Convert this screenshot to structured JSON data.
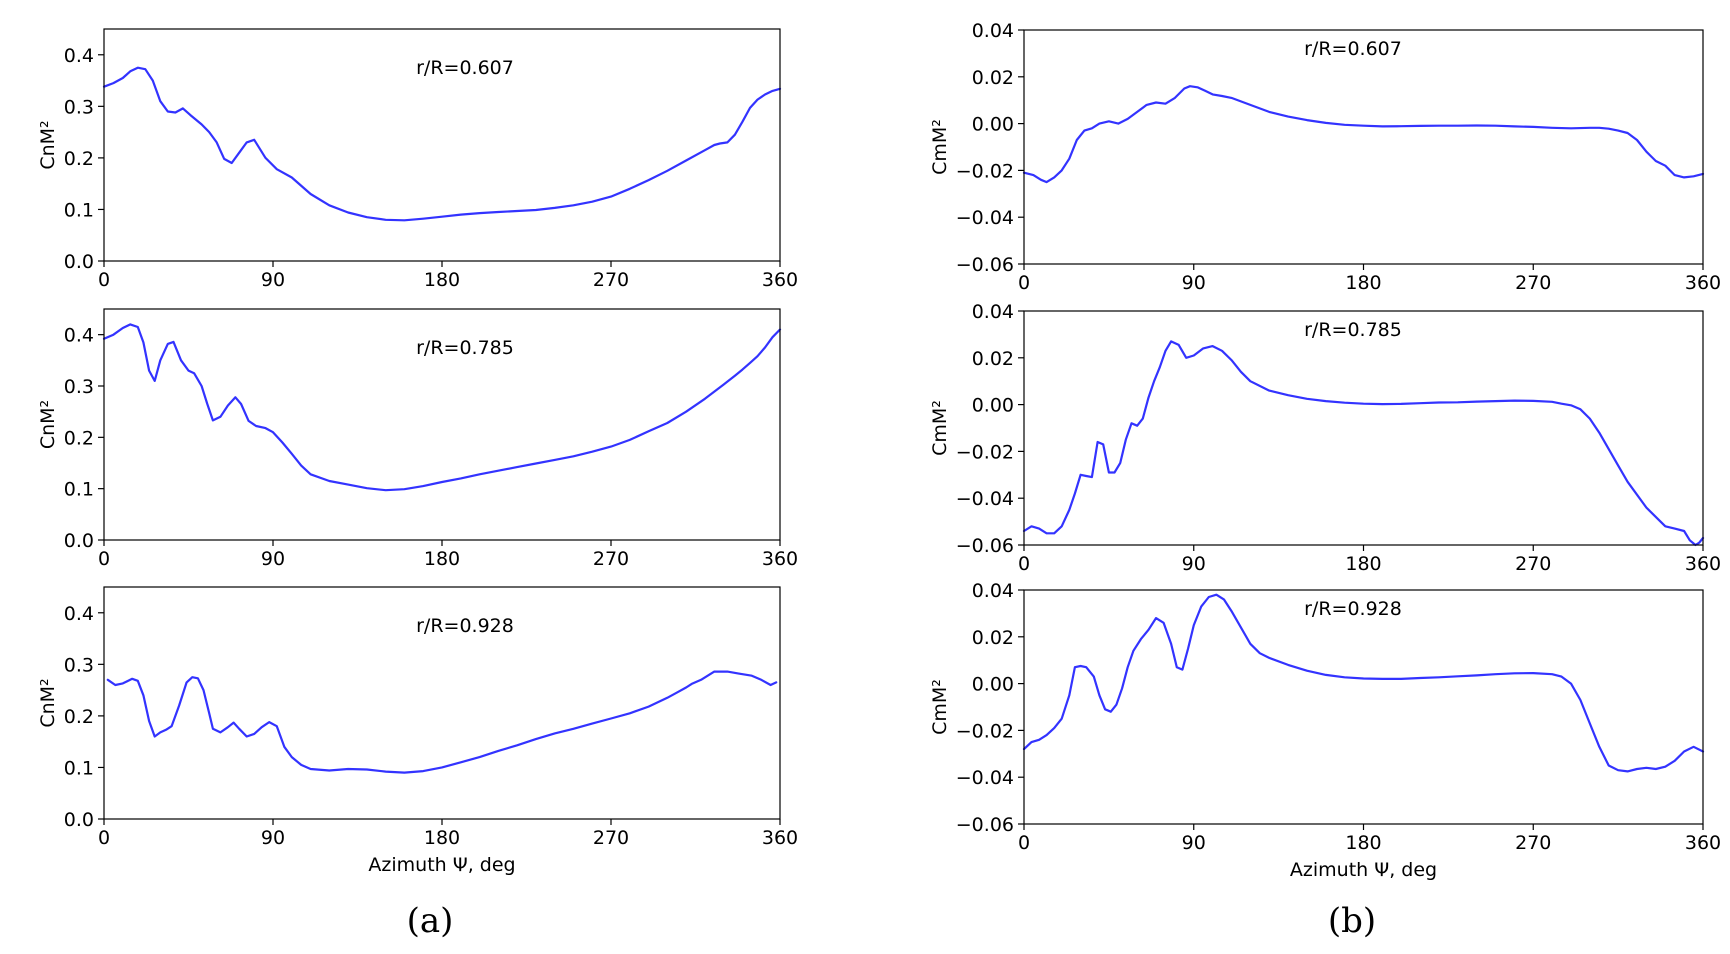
{
  "figure": {
    "sublabels": [
      "(a)",
      "(b)"
    ]
  },
  "colors": {
    "series": "#3333ff"
  },
  "chart_data": [
    {
      "type": "line",
      "column": "a",
      "row": 0,
      "annotation": "r/R=0.607",
      "ylabel": "CnM²",
      "xlabel": "",
      "xlim": [
        0,
        360
      ],
      "ylim": [
        0,
        0.45
      ],
      "xticks": [
        0,
        90,
        180,
        270,
        360
      ],
      "xtick_labels": [
        "0",
        "90",
        "180",
        "270",
        "360"
      ],
      "yticks": [
        0,
        0.1,
        0.2,
        0.3,
        0.4
      ],
      "ytick_labels": [
        "0.0",
        "0.1",
        "0.2",
        "0.3",
        "0.4"
      ],
      "series": [
        {
          "name": "CnM²",
          "x": [
            0,
            5,
            10,
            14,
            18,
            22,
            26,
            30,
            34,
            38,
            42,
            46,
            52,
            56,
            60,
            64,
            68,
            72,
            76,
            80,
            86,
            92,
            100,
            110,
            120,
            130,
            140,
            150,
            160,
            170,
            180,
            190,
            200,
            210,
            220,
            230,
            240,
            250,
            260,
            270,
            280,
            290,
            300,
            310,
            320,
            325,
            328,
            332,
            336,
            340,
            344,
            348,
            352,
            356,
            360
          ],
          "y": [
            0.338,
            0.345,
            0.355,
            0.368,
            0.375,
            0.372,
            0.35,
            0.31,
            0.29,
            0.288,
            0.296,
            0.283,
            0.265,
            0.25,
            0.23,
            0.198,
            0.19,
            0.21,
            0.23,
            0.235,
            0.2,
            0.178,
            0.162,
            0.13,
            0.108,
            0.094,
            0.085,
            0.08,
            0.079,
            0.082,
            0.086,
            0.09,
            0.093,
            0.095,
            0.097,
            0.099,
            0.103,
            0.108,
            0.115,
            0.125,
            0.14,
            0.157,
            0.175,
            0.195,
            0.215,
            0.225,
            0.228,
            0.23,
            0.245,
            0.27,
            0.297,
            0.313,
            0.323,
            0.33,
            0.334
          ]
        }
      ]
    },
    {
      "type": "line",
      "column": "a",
      "row": 1,
      "annotation": "r/R=0.785",
      "ylabel": "CnM²",
      "xlabel": "",
      "xlim": [
        0,
        360
      ],
      "ylim": [
        0,
        0.45
      ],
      "xticks": [
        0,
        90,
        180,
        270,
        360
      ],
      "xtick_labels": [
        "0",
        "90",
        "180",
        "270",
        "360"
      ],
      "yticks": [
        0,
        0.1,
        0.2,
        0.3,
        0.4
      ],
      "ytick_labels": [
        "0.0",
        "0.1",
        "0.2",
        "0.3",
        "0.4"
      ],
      "series": [
        {
          "name": "CnM²",
          "x": [
            0,
            5,
            10,
            14,
            18,
            21,
            24,
            27,
            30,
            34,
            37,
            41,
            45,
            48,
            52,
            55,
            58,
            62,
            66,
            70,
            73,
            77,
            81,
            86,
            90,
            95,
            100,
            105,
            110,
            120,
            130,
            140,
            150,
            160,
            170,
            180,
            190,
            200,
            210,
            220,
            230,
            240,
            250,
            260,
            270,
            280,
            290,
            300,
            310,
            320,
            330,
            336,
            340,
            344,
            348,
            352,
            356,
            360
          ],
          "y": [
            0.392,
            0.4,
            0.413,
            0.42,
            0.415,
            0.385,
            0.33,
            0.31,
            0.35,
            0.382,
            0.386,
            0.35,
            0.33,
            0.325,
            0.3,
            0.265,
            0.233,
            0.24,
            0.262,
            0.278,
            0.265,
            0.232,
            0.222,
            0.218,
            0.21,
            0.19,
            0.168,
            0.145,
            0.128,
            0.115,
            0.108,
            0.101,
            0.097,
            0.099,
            0.105,
            0.113,
            0.12,
            0.128,
            0.135,
            0.142,
            0.149,
            0.156,
            0.163,
            0.172,
            0.182,
            0.195,
            0.212,
            0.228,
            0.25,
            0.275,
            0.303,
            0.32,
            0.332,
            0.345,
            0.358,
            0.375,
            0.395,
            0.41
          ]
        }
      ]
    },
    {
      "type": "line",
      "column": "a",
      "row": 2,
      "annotation": "r/R=0.928",
      "ylabel": "CnM²",
      "xlabel": "Azimuth Ψ, deg",
      "xlim": [
        0,
        360
      ],
      "ylim": [
        0,
        0.45
      ],
      "xticks": [
        0,
        90,
        180,
        270,
        360
      ],
      "xtick_labels": [
        "0",
        "90",
        "180",
        "270",
        "360"
      ],
      "yticks": [
        0,
        0.1,
        0.2,
        0.3,
        0.4
      ],
      "ytick_labels": [
        "0.0",
        "0.1",
        "0.2",
        "0.3",
        "0.4"
      ],
      "series": [
        {
          "name": "CnM²",
          "x": [
            2,
            6,
            10,
            15,
            18,
            21,
            24,
            27,
            30,
            33,
            36,
            40,
            44,
            47,
            50,
            53,
            56,
            58,
            62,
            66,
            69,
            72,
            76,
            80,
            84,
            88,
            92,
            96,
            100,
            105,
            110,
            120,
            130,
            140,
            150,
            160,
            170,
            180,
            190,
            200,
            210,
            220,
            230,
            240,
            250,
            260,
            270,
            280,
            290,
            300,
            305,
            310,
            313,
            318,
            325,
            332,
            338,
            345,
            350,
            355,
            358
          ],
          "y": [
            0.27,
            0.26,
            0.263,
            0.272,
            0.268,
            0.24,
            0.19,
            0.16,
            0.168,
            0.173,
            0.18,
            0.22,
            0.265,
            0.275,
            0.273,
            0.25,
            0.205,
            0.175,
            0.168,
            0.178,
            0.187,
            0.175,
            0.16,
            0.165,
            0.178,
            0.188,
            0.18,
            0.14,
            0.12,
            0.105,
            0.097,
            0.094,
            0.097,
            0.096,
            0.092,
            0.09,
            0.093,
            0.1,
            0.11,
            0.12,
            0.132,
            0.143,
            0.155,
            0.166,
            0.175,
            0.185,
            0.195,
            0.205,
            0.218,
            0.235,
            0.245,
            0.255,
            0.262,
            0.27,
            0.286,
            0.286,
            0.282,
            0.278,
            0.27,
            0.26,
            0.265
          ]
        }
      ]
    },
    {
      "type": "line",
      "column": "b",
      "row": 0,
      "annotation": "r/R=0.607",
      "ylabel": "CmM²",
      "xlabel": "",
      "xlim": [
        0,
        360
      ],
      "ylim": [
        -0.06,
        0.04
      ],
      "xticks": [
        0,
        90,
        180,
        270,
        360
      ],
      "xtick_labels": [
        "0",
        "90",
        "180",
        "270",
        "360"
      ],
      "yticks": [
        -0.06,
        -0.04,
        -0.02,
        0.0,
        0.02,
        0.04
      ],
      "ytick_labels": [
        "−0.06",
        "−0.04",
        "−0.02",
        "0.00",
        "0.02",
        "0.04"
      ],
      "series": [
        {
          "name": "CmM²",
          "x": [
            0,
            5,
            9,
            12,
            16,
            20,
            24,
            28,
            32,
            36,
            40,
            45,
            50,
            55,
            60,
            65,
            70,
            75,
            80,
            85,
            88,
            92,
            96,
            100,
            105,
            110,
            120,
            130,
            140,
            150,
            160,
            170,
            180,
            190,
            200,
            210,
            220,
            230,
            240,
            250,
            260,
            270,
            280,
            290,
            300,
            305,
            310,
            315,
            320,
            325,
            330,
            335,
            340,
            345,
            350,
            355,
            360
          ],
          "y": [
            -0.021,
            -0.022,
            -0.024,
            -0.025,
            -0.023,
            -0.02,
            -0.015,
            -0.007,
            -0.003,
            -0.002,
            0.0,
            0.001,
            0.0,
            0.002,
            0.005,
            0.008,
            0.009,
            0.0085,
            0.011,
            0.015,
            0.016,
            0.0155,
            0.014,
            0.0125,
            0.0118,
            0.011,
            0.008,
            0.005,
            0.003,
            0.0015,
            0.0003,
            -0.0005,
            -0.0009,
            -0.0012,
            -0.0011,
            -0.001,
            -0.0009,
            -0.0009,
            -0.0008,
            -0.0009,
            -0.0012,
            -0.0014,
            -0.0018,
            -0.002,
            -0.0018,
            -0.0018,
            -0.0022,
            -0.003,
            -0.004,
            -0.007,
            -0.012,
            -0.016,
            -0.018,
            -0.022,
            -0.023,
            -0.0225,
            -0.0215
          ]
        }
      ]
    },
    {
      "type": "line",
      "column": "b",
      "row": 1,
      "annotation": "r/R=0.785",
      "ylabel": "CmM²",
      "xlabel": "",
      "xlim": [
        0,
        360
      ],
      "ylim": [
        -0.06,
        0.04
      ],
      "xticks": [
        0,
        90,
        180,
        270,
        360
      ],
      "xtick_labels": [
        "0",
        "90",
        "180",
        "270",
        "360"
      ],
      "yticks": [
        -0.06,
        -0.04,
        -0.02,
        0.0,
        0.02,
        0.04
      ],
      "ytick_labels": [
        "−0.06",
        "−0.04",
        "−0.02",
        "0.00",
        "0.02",
        "0.04"
      ],
      "series": [
        {
          "name": "CmM²",
          "x": [
            0,
            4,
            8,
            12,
            16,
            20,
            24,
            27,
            30,
            33,
            36,
            39,
            42,
            45,
            48,
            51,
            54,
            57,
            60,
            63,
            66,
            69,
            72,
            75,
            78,
            82,
            86,
            90,
            95,
            100,
            105,
            110,
            115,
            120,
            130,
            140,
            150,
            160,
            170,
            180,
            190,
            200,
            210,
            220,
            230,
            240,
            250,
            260,
            270,
            280,
            285,
            290,
            295,
            300,
            305,
            310,
            315,
            320,
            330,
            340,
            345,
            350,
            353,
            356,
            358,
            360
          ],
          "y": [
            -0.054,
            -0.052,
            -0.053,
            -0.055,
            -0.055,
            -0.052,
            -0.045,
            -0.038,
            -0.03,
            -0.0305,
            -0.031,
            -0.016,
            -0.017,
            -0.029,
            -0.029,
            -0.025,
            -0.015,
            -0.008,
            -0.009,
            -0.006,
            0.003,
            0.01,
            0.016,
            0.023,
            0.027,
            0.0255,
            0.02,
            0.021,
            0.024,
            0.025,
            0.023,
            0.019,
            0.014,
            0.01,
            0.006,
            0.004,
            0.0025,
            0.0015,
            0.0008,
            0.0004,
            0.0002,
            0.0003,
            0.0006,
            0.0009,
            0.001,
            0.0013,
            0.0015,
            0.0017,
            0.0016,
            0.0012,
            0.0004,
            -0.0003,
            -0.002,
            -0.006,
            -0.012,
            -0.019,
            -0.026,
            -0.033,
            -0.044,
            -0.052,
            -0.053,
            -0.054,
            -0.058,
            -0.06,
            -0.059,
            -0.057
          ]
        }
      ]
    },
    {
      "type": "line",
      "column": "b",
      "row": 2,
      "annotation": "r/R=0.928",
      "ylabel": "CmM²",
      "xlabel": "Azimuth Ψ, deg",
      "xlim": [
        0,
        360
      ],
      "ylim": [
        -0.06,
        0.04
      ],
      "xticks": [
        0,
        90,
        180,
        270,
        360
      ],
      "xtick_labels": [
        "0",
        "90",
        "180",
        "270",
        "360"
      ],
      "yticks": [
        -0.06,
        -0.04,
        -0.02,
        0.0,
        0.02,
        0.04
      ],
      "ytick_labels": [
        "−0.06",
        "−0.04",
        "−0.02",
        "0.00",
        "0.02",
        "0.04"
      ],
      "series": [
        {
          "name": "CmM²",
          "x": [
            0,
            4,
            8,
            12,
            16,
            20,
            24,
            27,
            30,
            33,
            37,
            40,
            43,
            46,
            49,
            52,
            55,
            58,
            62,
            66,
            70,
            74,
            78,
            81,
            84,
            87,
            90,
            94,
            98,
            102,
            106,
            110,
            115,
            120,
            125,
            130,
            140,
            150,
            160,
            170,
            180,
            190,
            200,
            210,
            220,
            230,
            240,
            250,
            260,
            270,
            280,
            285,
            290,
            295,
            300,
            305,
            310,
            315,
            320,
            325,
            330,
            335,
            340,
            345,
            350,
            355,
            360
          ],
          "y": [
            -0.028,
            -0.025,
            -0.024,
            -0.022,
            -0.019,
            -0.015,
            -0.005,
            0.007,
            0.0075,
            0.007,
            0.003,
            -0.005,
            -0.011,
            -0.012,
            -0.009,
            -0.002,
            0.007,
            0.014,
            0.019,
            0.023,
            0.028,
            0.026,
            0.017,
            0.007,
            0.006,
            0.015,
            0.025,
            0.033,
            0.037,
            0.038,
            0.036,
            0.031,
            0.024,
            0.017,
            0.013,
            0.011,
            0.008,
            0.0055,
            0.0037,
            0.0027,
            0.0022,
            0.002,
            0.002,
            0.0024,
            0.0027,
            0.0031,
            0.0035,
            0.004,
            0.0044,
            0.0045,
            0.004,
            0.003,
            0.0,
            -0.007,
            -0.017,
            -0.027,
            -0.035,
            -0.037,
            -0.0375,
            -0.0365,
            -0.036,
            -0.0365,
            -0.0355,
            -0.033,
            -0.029,
            -0.027,
            -0.029
          ]
        }
      ]
    }
  ]
}
